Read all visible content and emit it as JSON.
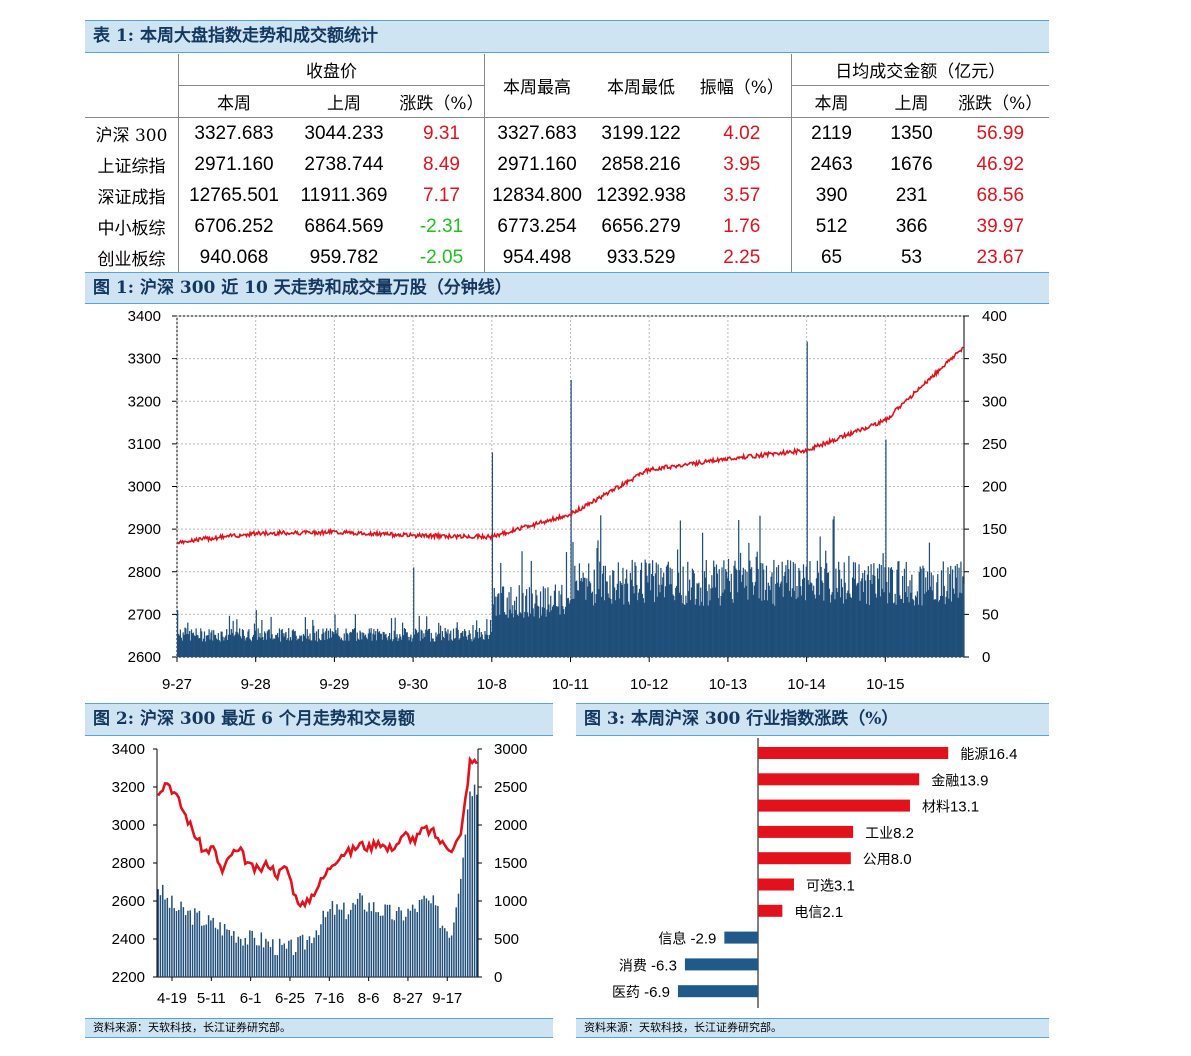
{
  "table": {
    "title": "表 1:  本周大盘指数走势和成交额统计",
    "group_close": "收盘价",
    "group_high": "本周最高",
    "group_low": "本周最低",
    "group_amp": "振幅（%）",
    "group_turnover": "日均成交金额（亿元）",
    "sub_this": "本周",
    "sub_last": "上周",
    "sub_chg": "涨跌（%）",
    "rows": [
      {
        "name": "沪深 300",
        "close_this": "3327.683",
        "close_last": "3044.233",
        "close_chg": "9.31",
        "high": "3327.683",
        "low": "3199.122",
        "amp": "4.02",
        "to_this": "2119",
        "to_last": "1350",
        "to_chg": "56.99",
        "dir": "up"
      },
      {
        "name": "上证综指",
        "close_this": "2971.160",
        "close_last": "2738.744",
        "close_chg": "8.49",
        "high": "2971.160",
        "low": "2858.216",
        "amp": "3.95",
        "to_this": "2463",
        "to_last": "1676",
        "to_chg": "46.92",
        "dir": "up"
      },
      {
        "name": "深证成指",
        "close_this": "12765.501",
        "close_last": "11911.369",
        "close_chg": "7.17",
        "high": "12834.800",
        "low": "12392.938",
        "amp": "3.57",
        "to_this": "390",
        "to_last": "231",
        "to_chg": "68.56",
        "dir": "up"
      },
      {
        "name": "中小板综",
        "close_this": "6706.252",
        "close_last": "6864.569",
        "close_chg": "-2.31",
        "high": "6773.254",
        "low": "6656.279",
        "amp": "1.76",
        "to_this": "512",
        "to_last": "366",
        "to_chg": "39.97",
        "dir": "dn"
      },
      {
        "name": "创业板综",
        "close_this": "940.068",
        "close_last": "959.782",
        "close_chg": "-2.05",
        "high": "954.498",
        "low": "933.529",
        "amp": "2.25",
        "to_this": "65",
        "to_last": "53",
        "to_chg": "23.67",
        "dir": "dn"
      }
    ]
  },
  "fig1": {
    "title": "图 1:  沪深 300 近 10 天走势和成交量万股（分钟线）"
  },
  "fig2": {
    "title": "图 2:  沪深 300 最近 6 个月走势和交易额",
    "source": "资料来源：天软科技，长江证券研究部。"
  },
  "fig3": {
    "title": "图 3:  本周沪深 300 行业指数涨跌（%）",
    "source": "资料来源：天软科技，长江证券研究部。"
  },
  "colors": {
    "line": "#e3111b",
    "bar": "#1f4e79",
    "band": "#cfe4f3",
    "up": "#e3111b",
    "down": "#19c319",
    "neg_bar": "#1f5a8a"
  },
  "chart_data": [
    {
      "type": "line",
      "ylim_left": [
        2600,
        3400
      ],
      "yticks_left": [
        2600,
        2700,
        2800,
        2900,
        3000,
        3100,
        3200,
        3300,
        3400
      ],
      "ylim_right": [
        0,
        400
      ],
      "yticks_right": [
        0,
        50,
        100,
        150,
        200,
        250,
        300,
        350,
        400
      ],
      "categories": [
        "9-27",
        "9-28",
        "9-29",
        "9-30",
        "10-8",
        "10-11",
        "10-12",
        "10-13",
        "10-14",
        "10-15"
      ],
      "series": [
        {
          "kind": "line",
          "axis": "left",
          "values_approx_per_day_end": [
            2890,
            2893,
            2885,
            2882,
            2935,
            3040,
            3065,
            3085,
            3155,
            3328
          ]
        },
        {
          "kind": "bar",
          "axis": "right",
          "values_approx_daily_peak": [
            55,
            55,
            50,
            105,
            240,
            325,
            110,
            115,
            370,
            255
          ]
        }
      ],
      "grid": true
    },
    {
      "type": "line",
      "ylim_left": [
        2200,
        3400
      ],
      "yticks_left": [
        2200,
        2400,
        2600,
        2800,
        3000,
        3200,
        3400
      ],
      "ylim_right": [
        0,
        3000
      ],
      "yticks_right": [
        0,
        500,
        1000,
        1500,
        2000,
        2500,
        3000
      ],
      "xtick_labels": [
        "4-19",
        "5-11",
        "6-1",
        "6-25",
        "7-16",
        "8-6",
        "8-27",
        "9-17"
      ],
      "series": [
        {
          "kind": "line",
          "axis": "left",
          "values": [
            3180,
            3230,
            3150,
            3050,
            2950,
            2860,
            2880,
            2750,
            2850,
            2860,
            2780,
            2760,
            2800,
            2740,
            2780,
            2620,
            2570,
            2650,
            2720,
            2800,
            2850,
            2860,
            2900,
            2880,
            2920,
            2870,
            2900,
            2950,
            2920,
            2980,
            2960,
            2900,
            2880,
            2940,
            3330
          ]
        },
        {
          "kind": "bar",
          "axis": "right",
          "values": [
            1200,
            1000,
            900,
            850,
            800,
            750,
            700,
            650,
            600,
            550,
            500,
            500,
            450,
            400,
            350,
            400,
            450,
            600,
            750,
            900,
            850,
            900,
            1000,
            950,
            900,
            850,
            800,
            850,
            900,
            1000,
            950,
            700,
            600,
            1400,
            2500
          ]
        }
      ],
      "grid": false
    },
    {
      "type": "bar",
      "orientation": "horizontal",
      "categories": [
        "能源",
        "金融",
        "材料",
        "工业",
        "公用",
        "可选",
        "电信",
        "信息",
        "消费",
        "医药"
      ],
      "values": [
        16.4,
        13.9,
        13.1,
        8.2,
        8.0,
        3.1,
        2.1,
        -2.9,
        -6.3,
        -6.9
      ]
    }
  ]
}
